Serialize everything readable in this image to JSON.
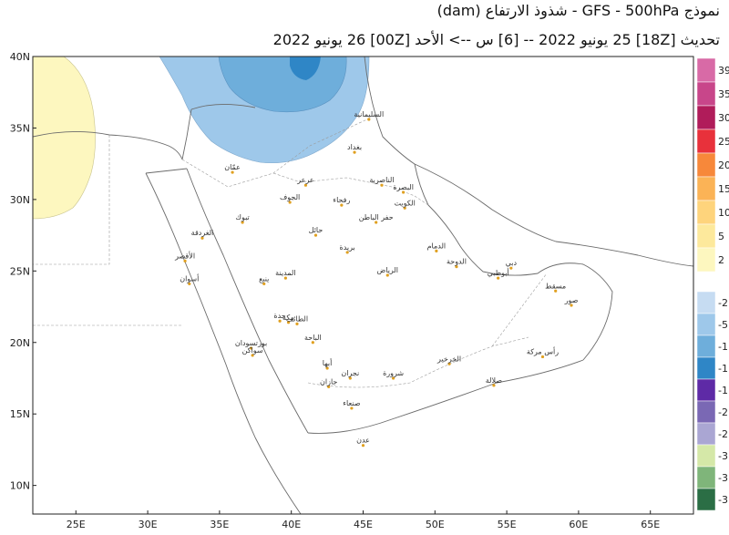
{
  "header": {
    "title": "نموذج GFS - 500hPa - شذوذ الارتفاع (dam)",
    "subtitle": "تحديث [18Z] 25 يونيو 2022 -- [6] س --> الأحد [00Z] 26 يونيو 2022"
  },
  "axes": {
    "lat_labels": [
      "40N",
      "35N",
      "30N",
      "25N",
      "20N",
      "15N",
      "10N"
    ],
    "lon_labels": [
      "25E",
      "30E",
      "35E",
      "40E",
      "45E",
      "50E",
      "55E",
      "60E",
      "65E"
    ]
  },
  "colorbar": {
    "positive": [
      {
        "label": "39",
        "color": "#d86aa6"
      },
      {
        "label": "35",
        "color": "#c8468a"
      },
      {
        "label": "30",
        "color": "#b01c5a"
      },
      {
        "label": "25",
        "color": "#e8313b"
      },
      {
        "label": "20",
        "color": "#f7883a"
      },
      {
        "label": "15",
        "color": "#fbb356"
      },
      {
        "label": "10",
        "color": "#fed47c"
      },
      {
        "label": "5",
        "color": "#fde99c"
      },
      {
        "label": "2",
        "color": "#fdf7bf"
      }
    ],
    "negative": [
      {
        "label": "-2",
        "color": "#c6dcf2"
      },
      {
        "label": "-5",
        "color": "#9ec8ea"
      },
      {
        "label": "-1",
        "color": "#6eaedb"
      },
      {
        "label": "-1",
        "color": "#2f86c6"
      },
      {
        "label": "-1",
        "color": "#5e2aa6"
      },
      {
        "label": "-2",
        "color": "#7a68b4"
      },
      {
        "label": "-2",
        "color": "#aaa6d3"
      },
      {
        "label": "-3",
        "color": "#d5e8a8"
      },
      {
        "label": "-3",
        "color": "#7fb57a"
      },
      {
        "label": "-3",
        "color": "#2b6e45"
      }
    ]
  },
  "cities": [
    {
      "name": "بغداد",
      "lon": 44.4,
      "lat": 33.3
    },
    {
      "name": "السليمانية",
      "lon": 45.4,
      "lat": 35.6
    },
    {
      "name": "الناصرية",
      "lon": 46.3,
      "lat": 31.0
    },
    {
      "name": "البصرة",
      "lon": 47.8,
      "lat": 30.5
    },
    {
      "name": "الكويت",
      "lon": 47.9,
      "lat": 29.4
    },
    {
      "name": "عمّان",
      "lon": 35.9,
      "lat": 31.9
    },
    {
      "name": "الجوف",
      "lon": 39.9,
      "lat": 29.8
    },
    {
      "name": "عرعر",
      "lon": 41.0,
      "lat": 31.0
    },
    {
      "name": "رفحاء",
      "lon": 43.5,
      "lat": 29.6
    },
    {
      "name": "حفر الباطن",
      "lon": 45.9,
      "lat": 28.4
    },
    {
      "name": "تبوك",
      "lon": 36.6,
      "lat": 28.4
    },
    {
      "name": "حائل",
      "lon": 41.7,
      "lat": 27.5
    },
    {
      "name": "بريدة",
      "lon": 43.9,
      "lat": 26.3
    },
    {
      "name": "الرياض",
      "lon": 46.7,
      "lat": 24.7
    },
    {
      "name": "الدمام",
      "lon": 50.1,
      "lat": 26.4
    },
    {
      "name": "المدينة",
      "lon": 39.6,
      "lat": 24.5
    },
    {
      "name": "ينبع",
      "lon": 38.1,
      "lat": 24.1
    },
    {
      "name": "جدة",
      "lon": 39.2,
      "lat": 21.5
    },
    {
      "name": "مكة",
      "lon": 39.8,
      "lat": 21.4
    },
    {
      "name": "الطائف",
      "lon": 40.4,
      "lat": 21.3
    },
    {
      "name": "الباحة",
      "lon": 41.5,
      "lat": 20.0
    },
    {
      "name": "أبها",
      "lon": 42.5,
      "lat": 18.2
    },
    {
      "name": "نجران",
      "lon": 44.1,
      "lat": 17.5
    },
    {
      "name": "جازان",
      "lon": 42.6,
      "lat": 16.9
    },
    {
      "name": "الدوحة",
      "lon": 51.5,
      "lat": 25.3
    },
    {
      "name": "دبي",
      "lon": 55.3,
      "lat": 25.2
    },
    {
      "name": "أبوظبي",
      "lon": 54.4,
      "lat": 24.5
    },
    {
      "name": "مسقط",
      "lon": 58.4,
      "lat": 23.6
    },
    {
      "name": "صلالة",
      "lon": 54.1,
      "lat": 17.0
    },
    {
      "name": "صنعاء",
      "lon": 44.2,
      "lat": 15.4
    },
    {
      "name": "عدن",
      "lon": 45.0,
      "lat": 12.8
    },
    {
      "name": "أسوان",
      "lon": 32.9,
      "lat": 24.1
    },
    {
      "name": "الأقصر",
      "lon": 32.6,
      "lat": 25.7
    },
    {
      "name": "الغردقة",
      "lon": 33.8,
      "lat": 27.3
    },
    {
      "name": "بورتسودان",
      "lon": 37.2,
      "lat": 19.6
    },
    {
      "name": "سواكن",
      "lon": 37.3,
      "lat": 19.1
    },
    {
      "name": "شرورة",
      "lon": 47.1,
      "lat": 17.5
    },
    {
      "name": "الخرخير",
      "lon": 51.0,
      "lat": 18.5
    },
    {
      "name": "رأس مركة",
      "lon": 57.5,
      "lat": 19.0
    },
    {
      "name": "صور",
      "lon": 59.5,
      "lat": 22.6
    }
  ]
}
